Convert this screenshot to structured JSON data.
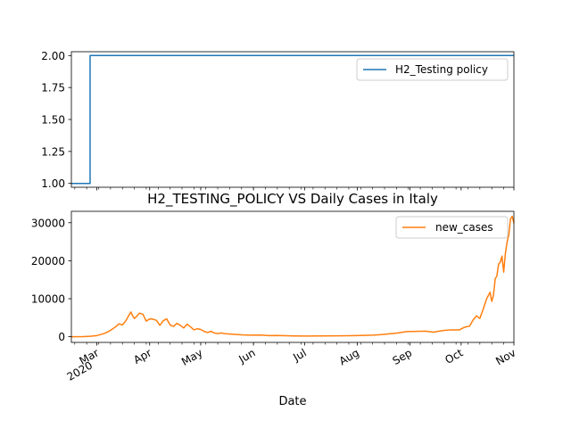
{
  "chart_data": [
    {
      "type": "line",
      "title": "",
      "xlabel": "",
      "ylabel": "",
      "ylim": [
        0.97,
        2.03
      ],
      "yticks": [
        "1.00",
        "1.25",
        "1.50",
        "1.75",
        "2.00"
      ],
      "legend_position": "upper-right",
      "series": [
        {
          "name": "H2_Testing policy",
          "color": "#1f77b4",
          "step": true,
          "points": [
            [
              "2020-02-15",
              1
            ],
            [
              "2020-02-25",
              1
            ],
            [
              "2020-02-26",
              2
            ],
            [
              "2020-11-01",
              2
            ]
          ]
        }
      ]
    },
    {
      "type": "line",
      "title": "H2_TESTING_POLICY VS Daily Cases in Italy",
      "xlabel": "Date",
      "ylabel": "",
      "ylim": [
        -1500,
        33000
      ],
      "yticks": [
        "0",
        "10000",
        "20000",
        "30000"
      ],
      "xtick_labels": [
        {
          "date": "2020-03-01",
          "label": "Mar",
          "sub": "2020"
        },
        {
          "date": "2020-04-01",
          "label": "Apr"
        },
        {
          "date": "2020-05-01",
          "label": "May"
        },
        {
          "date": "2020-06-01",
          "label": "Jun"
        },
        {
          "date": "2020-07-01",
          "label": "Jul"
        },
        {
          "date": "2020-08-01",
          "label": "Aug"
        },
        {
          "date": "2020-09-01",
          "label": "Sep"
        },
        {
          "date": "2020-10-01",
          "label": "Oct"
        },
        {
          "date": "2020-11-01",
          "label": "Nov"
        }
      ],
      "legend_position": "upper-right",
      "series": [
        {
          "name": "new_cases",
          "color": "#ff7f0e",
          "points": [
            [
              "2020-02-15",
              0
            ],
            [
              "2020-02-22",
              20
            ],
            [
              "2020-02-26",
              100
            ],
            [
              "2020-03-01",
              300
            ],
            [
              "2020-03-05",
              800
            ],
            [
              "2020-03-08",
              1400
            ],
            [
              "2020-03-10",
              2000
            ],
            [
              "2020-03-12",
              2600
            ],
            [
              "2020-03-14",
              3400
            ],
            [
              "2020-03-16",
              3100
            ],
            [
              "2020-03-18",
              4200
            ],
            [
              "2020-03-20",
              5800
            ],
            [
              "2020-03-21",
              6500
            ],
            [
              "2020-03-22",
              5500
            ],
            [
              "2020-03-23",
              4800
            ],
            [
              "2020-03-24",
              5200
            ],
            [
              "2020-03-26",
              6200
            ],
            [
              "2020-03-28",
              5900
            ],
            [
              "2020-03-30",
              4100
            ],
            [
              "2020-04-01",
              4700
            ],
            [
              "2020-04-03",
              4600
            ],
            [
              "2020-04-05",
              4300
            ],
            [
              "2020-04-07",
              3000
            ],
            [
              "2020-04-09",
              4200
            ],
            [
              "2020-04-11",
              4700
            ],
            [
              "2020-04-13",
              3100
            ],
            [
              "2020-04-15",
              2700
            ],
            [
              "2020-04-17",
              3500
            ],
            [
              "2020-04-19",
              3000
            ],
            [
              "2020-04-21",
              2300
            ],
            [
              "2020-04-23",
              3300
            ],
            [
              "2020-04-25",
              2600
            ],
            [
              "2020-04-27",
              1800
            ],
            [
              "2020-04-29",
              2100
            ],
            [
              "2020-05-01",
              1900
            ],
            [
              "2020-05-03",
              1400
            ],
            [
              "2020-05-05",
              1100
            ],
            [
              "2020-05-07",
              1400
            ],
            [
              "2020-05-09",
              1000
            ],
            [
              "2020-05-11",
              800
            ],
            [
              "2020-05-13",
              1000
            ],
            [
              "2020-05-15",
              800
            ],
            [
              "2020-05-20",
              650
            ],
            [
              "2020-05-25",
              500
            ],
            [
              "2020-05-30",
              420
            ],
            [
              "2020-06-05",
              450
            ],
            [
              "2020-06-10",
              300
            ],
            [
              "2020-06-15",
              320
            ],
            [
              "2020-06-20",
              260
            ],
            [
              "2020-06-25",
              200
            ],
            [
              "2020-07-01",
              180
            ],
            [
              "2020-07-10",
              200
            ],
            [
              "2020-07-20",
              230
            ],
            [
              "2020-07-31",
              300
            ],
            [
              "2020-08-05",
              350
            ],
            [
              "2020-08-10",
              400
            ],
            [
              "2020-08-15",
              550
            ],
            [
              "2020-08-20",
              750
            ],
            [
              "2020-08-25",
              1000
            ],
            [
              "2020-08-30",
              1350
            ],
            [
              "2020-09-05",
              1400
            ],
            [
              "2020-09-10",
              1450
            ],
            [
              "2020-09-15",
              1200
            ],
            [
              "2020-09-20",
              1600
            ],
            [
              "2020-09-25",
              1800
            ],
            [
              "2020-09-30",
              1800
            ],
            [
              "2020-10-03",
              2500
            ],
            [
              "2020-10-06",
              2800
            ],
            [
              "2020-10-08",
              4400
            ],
            [
              "2020-10-10",
              5500
            ],
            [
              "2020-10-12",
              4800
            ],
            [
              "2020-10-14",
              7300
            ],
            [
              "2020-10-16",
              10000
            ],
            [
              "2020-10-18",
              11700
            ],
            [
              "2020-10-19",
              9300
            ],
            [
              "2020-10-20",
              10900
            ],
            [
              "2020-10-21",
              15200
            ],
            [
              "2020-10-22",
              16000
            ],
            [
              "2020-10-23",
              19100
            ],
            [
              "2020-10-24",
              19600
            ],
            [
              "2020-10-25",
              21200
            ],
            [
              "2020-10-26",
              17000
            ],
            [
              "2020-10-27",
              21900
            ],
            [
              "2020-10-28",
              24900
            ],
            [
              "2020-10-29",
              26800
            ],
            [
              "2020-10-30",
              31000
            ],
            [
              "2020-10-31",
              31700
            ],
            [
              "2020-11-01",
              29900
            ]
          ]
        }
      ]
    }
  ]
}
